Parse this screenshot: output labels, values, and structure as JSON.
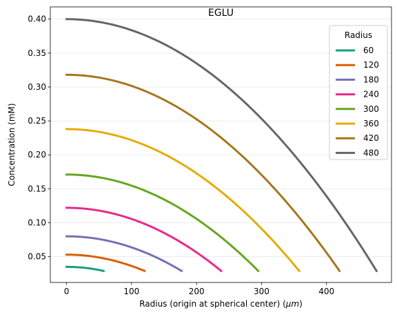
{
  "chart_data": {
    "type": "line",
    "title": "EGLU",
    "xlabel": "Radius (origin at spherical center) (",
    "xlabel_unit": "μm",
    "xlabel_close": ")",
    "ylabel": "Concentration (mM)",
    "xlim": [
      -25,
      500
    ],
    "ylim": [
      0.012,
      0.418
    ],
    "xticks": [
      0,
      100,
      200,
      300,
      400
    ],
    "yticks": [
      0.05,
      0.1,
      0.15,
      0.2,
      0.25,
      0.3,
      0.35,
      0.4
    ],
    "ytick_labels": [
      "0.05",
      "0.10",
      "0.15",
      "0.20",
      "0.25",
      "0.30",
      "0.35",
      "0.40"
    ],
    "grid": "horizontal",
    "legend_title": "Radius",
    "legend_position": "top-right",
    "series": [
      {
        "name": "60",
        "color": "#1b9e77",
        "x_end": 57,
        "y_start": 0.035,
        "y_end": 0.029
      },
      {
        "name": "120",
        "color": "#d95f02",
        "x_end": 120,
        "y_start": 0.053,
        "y_end": 0.029
      },
      {
        "name": "180",
        "color": "#7570b3",
        "x_end": 177,
        "y_start": 0.08,
        "y_end": 0.029
      },
      {
        "name": "240",
        "color": "#e7298a",
        "x_end": 238,
        "y_start": 0.122,
        "y_end": 0.029
      },
      {
        "name": "300",
        "color": "#66a61e",
        "x_end": 295,
        "y_start": 0.171,
        "y_end": 0.029
      },
      {
        "name": "360",
        "color": "#e6ab02",
        "x_end": 358,
        "y_start": 0.238,
        "y_end": 0.029
      },
      {
        "name": "420",
        "color": "#a6761d",
        "x_end": 420,
        "y_start": 0.318,
        "y_end": 0.029
      },
      {
        "name": "480",
        "color": "#666666",
        "x_end": 477,
        "y_start": 0.4,
        "y_end": 0.029
      }
    ]
  }
}
